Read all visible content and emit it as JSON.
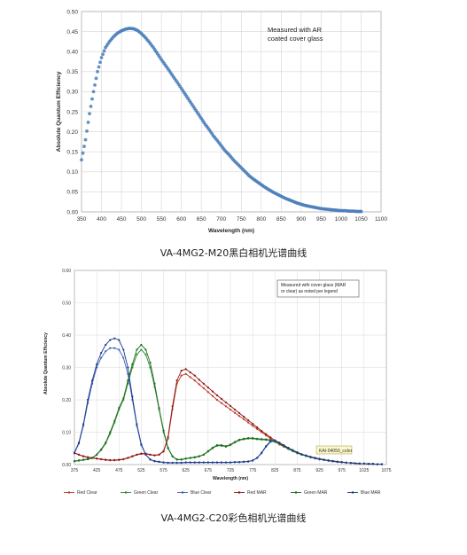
{
  "chart_data": [
    {
      "type": "scatter",
      "title": "",
      "xlabel": "Wavelength (nm)",
      "ylabel": "Absolute Quantum Efficiency",
      "xlim": [
        350,
        1100
      ],
      "ylim": [
        0,
        0.5
      ],
      "xticks": [
        350,
        400,
        450,
        500,
        550,
        600,
        650,
        700,
        750,
        800,
        850,
        900,
        950,
        1000,
        1050,
        1100
      ],
      "yticks": [
        0,
        0.05,
        0.1,
        0.15,
        0.2,
        0.25,
        0.3,
        0.35,
        0.4,
        0.45,
        0.5
      ],
      "ytick_labels": [
        "0.00",
        "0.05",
        "0.10",
        "0.15",
        "0.20",
        "0.25",
        "0.30",
        "0.35",
        "0.40",
        "0.45",
        "0.50"
      ],
      "grid": true,
      "annotation": [
        "Measured with AR",
        "coated cover glass"
      ],
      "color": "#4a7ebb",
      "series": [
        {
          "x": [
            350,
            360,
            370,
            380,
            390,
            400,
            410,
            420,
            430,
            440,
            450,
            460,
            470,
            480,
            490,
            500,
            510,
            520,
            530,
            540,
            550,
            560,
            570,
            580,
            590,
            600,
            610,
            620,
            630,
            640,
            650,
            660,
            670,
            680,
            690,
            700,
            710,
            720,
            730,
            740,
            750,
            760,
            770,
            780,
            790,
            800,
            810,
            820,
            830,
            840,
            850,
            860,
            870,
            880,
            890,
            900,
            910,
            920,
            930,
            940,
            950,
            960,
            970,
            980,
            990,
            1000,
            1010,
            1020,
            1030,
            1040,
            1050
          ],
          "values": [
            0.13,
            0.18,
            0.245,
            0.3,
            0.35,
            0.385,
            0.41,
            0.425,
            0.437,
            0.446,
            0.452,
            0.456,
            0.458,
            0.457,
            0.453,
            0.445,
            0.435,
            0.423,
            0.41,
            0.395,
            0.38,
            0.366,
            0.352,
            0.337,
            0.323,
            0.308,
            0.293,
            0.278,
            0.263,
            0.248,
            0.233,
            0.218,
            0.205,
            0.19,
            0.178,
            0.165,
            0.152,
            0.142,
            0.13,
            0.12,
            0.11,
            0.1,
            0.09,
            0.082,
            0.075,
            0.068,
            0.061,
            0.055,
            0.049,
            0.044,
            0.039,
            0.034,
            0.03,
            0.026,
            0.022,
            0.019,
            0.016,
            0.014,
            0.012,
            0.01,
            0.008,
            0.007,
            0.006,
            0.005,
            0.004,
            0.003,
            0.003,
            0.002,
            0.002,
            0.001,
            0.001
          ]
        }
      ]
    },
    {
      "type": "line",
      "title": "",
      "xlabel": "Wavelength (nm)",
      "ylabel": "Absolute Quantum Efficiency",
      "xlim": [
        375,
        1075
      ],
      "ylim": [
        0,
        0.6
      ],
      "xticks": [
        375,
        425,
        475,
        525,
        575,
        625,
        675,
        725,
        775,
        825,
        875,
        925,
        975,
        1025,
        1075
      ],
      "yticks": [
        0,
        0.1,
        0.2,
        0.3,
        0.4,
        0.5,
        0.6
      ],
      "ytick_labels": [
        "0.00",
        "0.10",
        "0.20",
        "0.30",
        "0.40",
        "0.50",
        "0.60"
      ],
      "grid": true,
      "annotation": [
        "Measured with cover glass (MAR",
        "or clear) as noted per legend"
      ],
      "watermark": "KAI-04050_color",
      "legend_position": "bottom",
      "x": [
        375,
        385,
        395,
        405,
        415,
        425,
        435,
        445,
        455,
        465,
        475,
        485,
        495,
        505,
        515,
        525,
        535,
        545,
        555,
        565,
        575,
        585,
        595,
        605,
        615,
        625,
        635,
        645,
        655,
        665,
        675,
        685,
        695,
        705,
        715,
        725,
        735,
        745,
        755,
        765,
        775,
        785,
        795,
        805,
        815,
        825,
        835,
        845,
        855,
        865,
        875,
        885,
        895,
        905,
        915,
        925,
        935,
        945,
        955,
        965,
        975,
        985,
        995,
        1005,
        1015,
        1025,
        1035,
        1045,
        1055,
        1065
      ],
      "series": [
        {
          "name": "Red Clear",
          "color": "#c0392b",
          "values": [
            0.035,
            0.03,
            0.025,
            0.022,
            0.02,
            0.018,
            0.016,
            0.014,
            0.013,
            0.013,
            0.014,
            0.016,
            0.02,
            0.025,
            0.03,
            0.033,
            0.033,
            0.03,
            0.028,
            0.03,
            0.04,
            0.08,
            0.17,
            0.25,
            0.275,
            0.28,
            0.27,
            0.26,
            0.248,
            0.236,
            0.224,
            0.212,
            0.2,
            0.19,
            0.18,
            0.17,
            0.16,
            0.15,
            0.14,
            0.13,
            0.12,
            0.11,
            0.1,
            0.09,
            0.08,
            0.07,
            0.062,
            0.055,
            0.048,
            0.042,
            0.036,
            0.031,
            0.027,
            0.023,
            0.02,
            0.017,
            0.015,
            0.013,
            0.011,
            0.009,
            0.008,
            0.006,
            0.005,
            0.004,
            0.003,
            0.003,
            0.002,
            0.002,
            0.001,
            0.001
          ]
        },
        {
          "name": "Green Clear",
          "color": "#2e8b2e",
          "values": [
            0.01,
            0.012,
            0.014,
            0.016,
            0.02,
            0.03,
            0.045,
            0.065,
            0.095,
            0.13,
            0.17,
            0.2,
            0.25,
            0.3,
            0.34,
            0.355,
            0.34,
            0.3,
            0.24,
            0.17,
            0.1,
            0.05,
            0.025,
            0.015,
            0.015,
            0.018,
            0.02,
            0.022,
            0.025,
            0.03,
            0.04,
            0.05,
            0.058,
            0.058,
            0.055,
            0.06,
            0.068,
            0.075,
            0.078,
            0.08,
            0.08,
            0.078,
            0.077,
            0.076,
            0.074,
            0.07,
            0.064,
            0.056,
            0.048,
            0.041,
            0.035,
            0.03,
            0.026,
            0.022,
            0.019,
            0.016,
            0.014,
            0.012,
            0.01,
            0.008,
            0.007,
            0.006,
            0.005,
            0.004,
            0.003,
            0.003,
            0.002,
            0.002,
            0.001,
            0.001
          ]
        },
        {
          "name": "Blue Clear",
          "color": "#3a62b8",
          "values": [
            0.035,
            0.065,
            0.12,
            0.19,
            0.25,
            0.3,
            0.33,
            0.35,
            0.36,
            0.36,
            0.355,
            0.33,
            0.28,
            0.2,
            0.12,
            0.06,
            0.03,
            0.015,
            0.01,
            0.008,
            0.006,
            0.005,
            0.005,
            0.005,
            0.005,
            0.006,
            0.006,
            0.006,
            0.006,
            0.006,
            0.006,
            0.006,
            0.006,
            0.006,
            0.006,
            0.006,
            0.007,
            0.007,
            0.008,
            0.009,
            0.012,
            0.02,
            0.035,
            0.055,
            0.07,
            0.072,
            0.066,
            0.058,
            0.05,
            0.043,
            0.037,
            0.031,
            0.027,
            0.023,
            0.019,
            0.016,
            0.014,
            0.012,
            0.01,
            0.008,
            0.007,
            0.006,
            0.005,
            0.004,
            0.003,
            0.003,
            0.002,
            0.002,
            0.001,
            0.001
          ]
        },
        {
          "name": "Red MAR",
          "color": "#8b1a1a",
          "values": [
            0.036,
            0.031,
            0.026,
            0.023,
            0.021,
            0.019,
            0.017,
            0.015,
            0.014,
            0.014,
            0.015,
            0.017,
            0.021,
            0.026,
            0.031,
            0.034,
            0.034,
            0.031,
            0.029,
            0.031,
            0.042,
            0.085,
            0.18,
            0.26,
            0.29,
            0.295,
            0.285,
            0.275,
            0.262,
            0.25,
            0.238,
            0.226,
            0.214,
            0.203,
            0.192,
            0.181,
            0.17,
            0.159,
            0.148,
            0.137,
            0.126,
            0.115,
            0.104,
            0.094,
            0.084,
            0.074,
            0.065,
            0.057,
            0.05,
            0.044,
            0.038,
            0.032,
            0.028,
            0.024,
            0.021,
            0.018,
            0.015,
            0.013,
            0.011,
            0.009,
            0.008,
            0.006,
            0.005,
            0.004,
            0.003,
            0.003,
            0.002,
            0.002,
            0.001,
            0.001
          ]
        },
        {
          "name": "Green MAR",
          "color": "#1f6b1f",
          "values": [
            0.011,
            0.013,
            0.015,
            0.017,
            0.021,
            0.031,
            0.047,
            0.068,
            0.1,
            0.135,
            0.175,
            0.205,
            0.26,
            0.31,
            0.355,
            0.37,
            0.355,
            0.315,
            0.25,
            0.175,
            0.105,
            0.052,
            0.026,
            0.016,
            0.016,
            0.019,
            0.021,
            0.023,
            0.026,
            0.031,
            0.042,
            0.052,
            0.06,
            0.06,
            0.057,
            0.062,
            0.07,
            0.077,
            0.08,
            0.082,
            0.082,
            0.08,
            0.079,
            0.078,
            0.076,
            0.072,
            0.066,
            0.058,
            0.05,
            0.043,
            0.036,
            0.031,
            0.027,
            0.023,
            0.02,
            0.017,
            0.015,
            0.013,
            0.011,
            0.009,
            0.007,
            0.006,
            0.005,
            0.004,
            0.003,
            0.003,
            0.002,
            0.002,
            0.001,
            0.001
          ]
        },
        {
          "name": "Blue MAR",
          "color": "#1f3a8b",
          "values": [
            0.037,
            0.068,
            0.125,
            0.2,
            0.26,
            0.31,
            0.345,
            0.37,
            0.385,
            0.39,
            0.385,
            0.355,
            0.3,
            0.21,
            0.125,
            0.063,
            0.031,
            0.016,
            0.011,
            0.009,
            0.007,
            0.006,
            0.006,
            0.006,
            0.006,
            0.007,
            0.007,
            0.007,
            0.007,
            0.007,
            0.007,
            0.007,
            0.007,
            0.007,
            0.007,
            0.007,
            0.008,
            0.008,
            0.009,
            0.01,
            0.013,
            0.021,
            0.037,
            0.057,
            0.073,
            0.075,
            0.068,
            0.06,
            0.052,
            0.045,
            0.038,
            0.032,
            0.028,
            0.024,
            0.02,
            0.017,
            0.015,
            0.012,
            0.01,
            0.009,
            0.007,
            0.006,
            0.005,
            0.004,
            0.003,
            0.003,
            0.002,
            0.002,
            0.001,
            0.001
          ]
        }
      ]
    }
  ],
  "captions": {
    "top": "VA-4MG2-M20黑白相机光谱曲线",
    "bottom": "VA-4MG2-C20彩色相机光谱曲线"
  }
}
